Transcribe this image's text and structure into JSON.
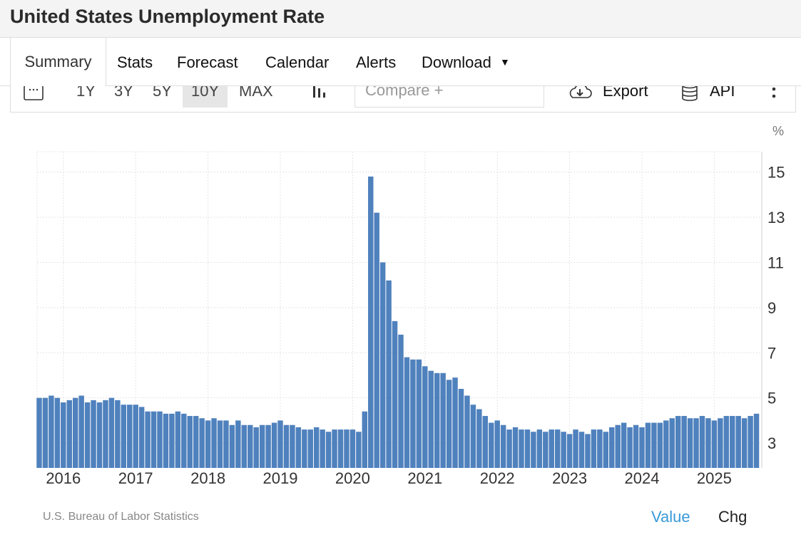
{
  "title": "United States Unemployment Rate",
  "nav": {
    "tabs": [
      "Summary",
      "Stats",
      "Forecast",
      "Calendar",
      "Alerts",
      "Download"
    ]
  },
  "toolbar": {
    "ranges": [
      "1Y",
      "3Y",
      "5Y",
      "10Y",
      "MAX"
    ],
    "active_range": "10Y",
    "compare_placeholder": "Compare +",
    "export": "Export",
    "api": "API"
  },
  "footer": {
    "source": "U.S. Bureau of Labor Statistics",
    "value": "Value",
    "chg": "Chg"
  },
  "colors": {
    "bar": "#4f81bd",
    "active_link": "#3a9ad9"
  },
  "chart_data": {
    "type": "bar",
    "unit": "%",
    "ylim": [
      1.9,
      15.9
    ],
    "yticks": [
      "3",
      "5",
      "7",
      "9",
      "11",
      "13",
      "15"
    ],
    "xticks": [
      "2016",
      "2017",
      "2018",
      "2019",
      "2020",
      "2021",
      "2022",
      "2023",
      "2024",
      "2025"
    ],
    "grid": true,
    "start": "2015-09",
    "frequency": "monthly",
    "values": [
      5.0,
      5.0,
      5.1,
      5.0,
      4.8,
      4.9,
      5.0,
      5.1,
      4.8,
      4.9,
      4.8,
      4.9,
      5.0,
      4.9,
      4.7,
      4.7,
      4.7,
      4.6,
      4.4,
      4.4,
      4.4,
      4.3,
      4.3,
      4.4,
      4.3,
      4.2,
      4.2,
      4.1,
      4.0,
      4.1,
      4.0,
      4.0,
      3.8,
      4.0,
      3.8,
      3.8,
      3.7,
      3.8,
      3.8,
      3.9,
      4.0,
      3.8,
      3.8,
      3.7,
      3.6,
      3.6,
      3.7,
      3.6,
      3.5,
      3.6,
      3.6,
      3.6,
      3.6,
      3.5,
      4.4,
      14.8,
      13.2,
      11.0,
      10.2,
      8.4,
      7.8,
      6.8,
      6.7,
      6.7,
      6.4,
      6.2,
      6.1,
      6.1,
      5.8,
      5.9,
      5.4,
      5.1,
      4.7,
      4.5,
      4.2,
      3.9,
      4.0,
      3.8,
      3.6,
      3.7,
      3.6,
      3.6,
      3.5,
      3.6,
      3.5,
      3.6,
      3.6,
      3.5,
      3.4,
      3.6,
      3.5,
      3.4,
      3.6,
      3.6,
      3.5,
      3.7,
      3.8,
      3.9,
      3.7,
      3.8,
      3.7,
      3.9,
      3.9,
      3.9,
      4.0,
      4.1,
      4.2,
      4.2,
      4.1,
      4.1,
      4.2,
      4.1,
      4.0,
      4.1,
      4.2,
      4.2,
      4.2,
      4.1,
      4.2,
      4.3
    ]
  }
}
